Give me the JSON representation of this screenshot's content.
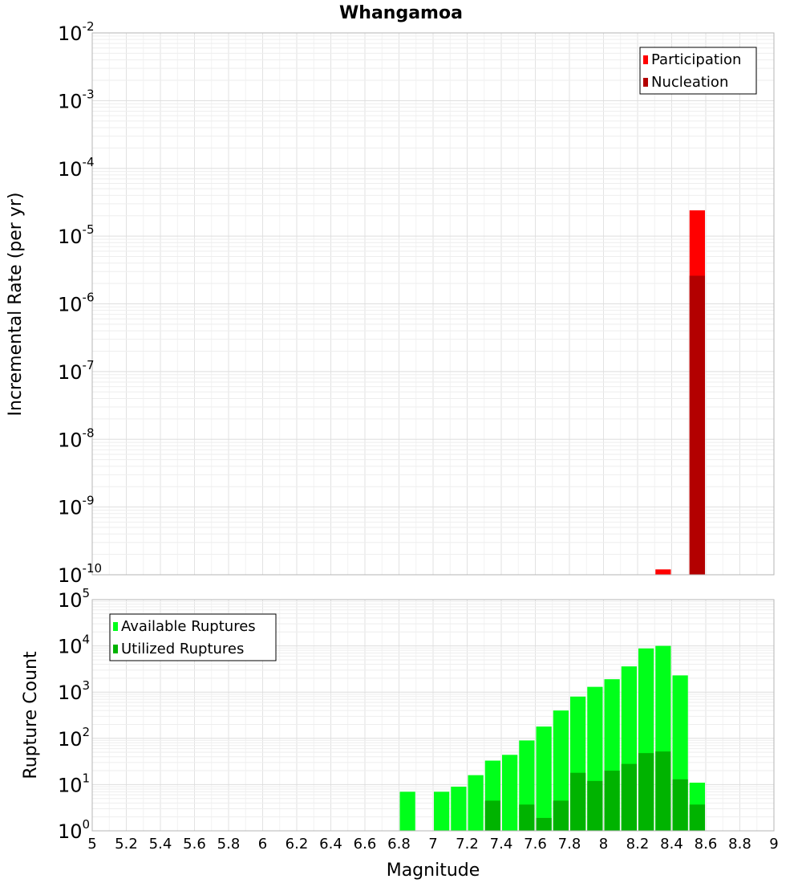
{
  "chart_data": [
    {
      "type": "bar",
      "title": "Whangamoa",
      "xlabel": "",
      "ylabel": "Incremental Rate (per yr)",
      "xlim": [
        5,
        9
      ],
      "ylim": [
        1e-10,
        0.01
      ],
      "y_scale": "log",
      "grid": true,
      "legend_position": "top-right",
      "bar_width": 0.1,
      "y_ticks": [
        {
          "base": "10",
          "exp": "-10",
          "value": 1e-10
        },
        {
          "base": "10",
          "exp": "-9",
          "value": 1e-09
        },
        {
          "base": "10",
          "exp": "-8",
          "value": 1e-08
        },
        {
          "base": "10",
          "exp": "-7",
          "value": 1e-07
        },
        {
          "base": "10",
          "exp": "-6",
          "value": 1e-06
        },
        {
          "base": "10",
          "exp": "-5",
          "value": 1e-05
        },
        {
          "base": "10",
          "exp": "-4",
          "value": 0.0001
        },
        {
          "base": "10",
          "exp": "-3",
          "value": 0.001
        },
        {
          "base": "10",
          "exp": "-2",
          "value": 0.01
        }
      ],
      "series": [
        {
          "name": "Participation",
          "color": "#ff0000",
          "points": [
            {
              "x": 8.35,
              "y": 1.2e-10
            },
            {
              "x": 8.55,
              "y": 2.4e-05
            }
          ]
        },
        {
          "name": "Nucleation",
          "color": "#b30000",
          "points": [
            {
              "x": 8.55,
              "y": 2.6e-06
            }
          ]
        }
      ]
    },
    {
      "type": "bar",
      "title": "",
      "xlabel": "Magnitude",
      "ylabel": "Rupture Count",
      "xlim": [
        5,
        9
      ],
      "ylim": [
        1,
        100000.0
      ],
      "y_scale": "log",
      "grid": true,
      "legend_position": "top-left",
      "bar_width": 0.1,
      "x_ticks": [
        "5",
        "5.2",
        "5.4",
        "5.6",
        "5.8",
        "6",
        "6.2",
        "6.4",
        "6.6",
        "6.8",
        "7",
        "7.2",
        "7.4",
        "7.6",
        "7.8",
        "8",
        "8.2",
        "8.4",
        "8.6",
        "8.8",
        "9"
      ],
      "y_ticks": [
        {
          "base": "10",
          "exp": "0",
          "value": 1
        },
        {
          "base": "10",
          "exp": "1",
          "value": 10
        },
        {
          "base": "10",
          "exp": "2",
          "value": 100
        },
        {
          "base": "10",
          "exp": "3",
          "value": 1000
        },
        {
          "base": "10",
          "exp": "4",
          "value": 10000
        },
        {
          "base": "10",
          "exp": "5",
          "value": 100000
        }
      ],
      "series": [
        {
          "name": "Available Ruptures",
          "color": "#00ff1a",
          "points": [
            {
              "x": 6.85,
              "y": 7
            },
            {
              "x": 7.05,
              "y": 7
            },
            {
              "x": 7.15,
              "y": 9
            },
            {
              "x": 7.25,
              "y": 16
            },
            {
              "x": 7.35,
              "y": 33
            },
            {
              "x": 7.45,
              "y": 44
            },
            {
              "x": 7.55,
              "y": 90
            },
            {
              "x": 7.65,
              "y": 180
            },
            {
              "x": 7.75,
              "y": 400
            },
            {
              "x": 7.85,
              "y": 800
            },
            {
              "x": 7.95,
              "y": 1300
            },
            {
              "x": 8.05,
              "y": 1900
            },
            {
              "x": 8.15,
              "y": 3600
            },
            {
              "x": 8.25,
              "y": 8800
            },
            {
              "x": 8.35,
              "y": 10000
            },
            {
              "x": 8.45,
              "y": 2300
            },
            {
              "x": 8.55,
              "y": 11
            }
          ]
        },
        {
          "name": "Utilized Ruptures",
          "color": "#00b300",
          "points": [
            {
              "x": 7.05,
              "y": 1
            },
            {
              "x": 7.15,
              "y": 1
            },
            {
              "x": 7.25,
              "y": 1
            },
            {
              "x": 7.35,
              "y": 4.5
            },
            {
              "x": 7.55,
              "y": 3.7
            },
            {
              "x": 7.65,
              "y": 1.9
            },
            {
              "x": 7.75,
              "y": 4.5
            },
            {
              "x": 7.85,
              "y": 18
            },
            {
              "x": 7.95,
              "y": 12
            },
            {
              "x": 8.05,
              "y": 20
            },
            {
              "x": 8.15,
              "y": 28
            },
            {
              "x": 8.25,
              "y": 48
            },
            {
              "x": 8.35,
              "y": 52
            },
            {
              "x": 8.45,
              "y": 13
            },
            {
              "x": 8.55,
              "y": 3.7
            }
          ]
        }
      ]
    }
  ]
}
